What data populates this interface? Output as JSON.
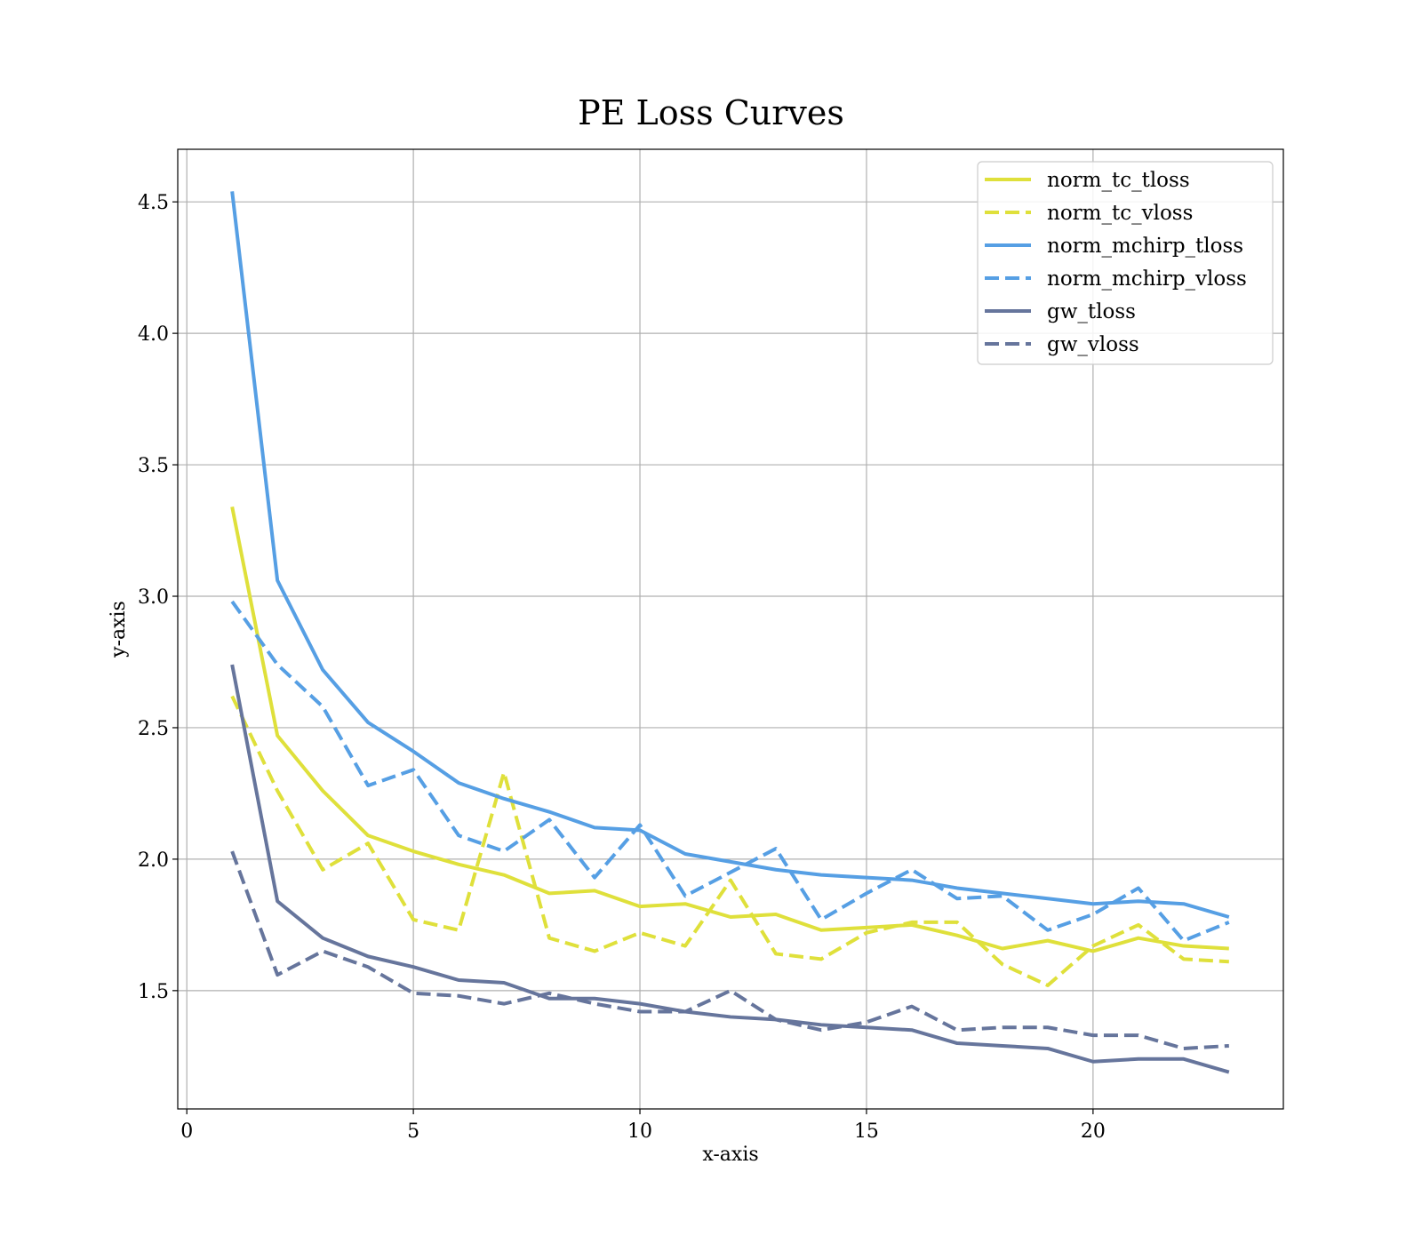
{
  "chart_data": {
    "type": "line",
    "title": "PE Loss Curves",
    "xlabel": "x-axis",
    "ylabel": "y-axis",
    "xlim": [
      -0.2,
      24.2
    ],
    "ylim": [
      1.05,
      4.7
    ],
    "xticks": [
      0,
      5,
      10,
      15,
      20
    ],
    "yticks": [
      1.5,
      2.0,
      2.5,
      3.0,
      3.5,
      4.0,
      4.5
    ],
    "xtick_labels": [
      "0",
      "5",
      "10",
      "15",
      "20"
    ],
    "ytick_labels": [
      "1.5",
      "2.0",
      "2.5",
      "3.0",
      "3.5",
      "4.0",
      "4.5"
    ],
    "grid": true,
    "legend_position": "top-right",
    "x": [
      1,
      2,
      3,
      4,
      5,
      6,
      7,
      8,
      9,
      10,
      11,
      12,
      13,
      14,
      15,
      16,
      17,
      18,
      19,
      20,
      21,
      22,
      23
    ],
    "series": [
      {
        "name": "norm_tc_tloss",
        "color": "#dfe03b",
        "dash": "solid",
        "values": [
          3.34,
          2.47,
          2.26,
          2.09,
          2.03,
          1.98,
          1.94,
          1.87,
          1.88,
          1.82,
          1.83,
          1.78,
          1.79,
          1.73,
          1.74,
          1.75,
          1.71,
          1.66,
          1.69,
          1.65,
          1.7,
          1.67,
          1.66
        ]
      },
      {
        "name": "norm_tc_vloss",
        "color": "#dfe03b",
        "dash": "dashed",
        "values": [
          2.62,
          2.26,
          1.96,
          2.06,
          1.77,
          1.73,
          2.33,
          1.7,
          1.65,
          1.72,
          1.67,
          1.92,
          1.64,
          1.62,
          1.72,
          1.76,
          1.76,
          1.6,
          1.52,
          1.67,
          1.75,
          1.62,
          1.61
        ]
      },
      {
        "name": "norm_mchirp_tloss",
        "color": "#569fe4",
        "dash": "solid",
        "values": [
          4.54,
          3.06,
          2.72,
          2.52,
          2.41,
          2.29,
          2.23,
          2.18,
          2.12,
          2.11,
          2.02,
          1.99,
          1.96,
          1.94,
          1.93,
          1.92,
          1.89,
          1.87,
          1.85,
          1.83,
          1.84,
          1.83,
          1.78
        ]
      },
      {
        "name": "norm_mchirp_vloss",
        "color": "#569fe4",
        "dash": "dashed",
        "values": [
          2.98,
          2.74,
          2.58,
          2.28,
          2.34,
          2.09,
          2.03,
          2.15,
          1.93,
          2.13,
          1.86,
          1.95,
          2.04,
          1.77,
          1.87,
          1.96,
          1.85,
          1.86,
          1.73,
          1.79,
          1.89,
          1.69,
          1.76
        ]
      },
      {
        "name": "gw_tloss",
        "color": "#66759c",
        "dash": "solid",
        "values": [
          2.74,
          1.84,
          1.7,
          1.63,
          1.59,
          1.54,
          1.53,
          1.47,
          1.47,
          1.45,
          1.42,
          1.4,
          1.39,
          1.37,
          1.36,
          1.35,
          1.3,
          1.29,
          1.28,
          1.23,
          1.24,
          1.24,
          1.19
        ]
      },
      {
        "name": "gw_vloss",
        "color": "#66759c",
        "dash": "dashed",
        "values": [
          2.03,
          1.56,
          1.65,
          1.59,
          1.49,
          1.48,
          1.45,
          1.49,
          1.45,
          1.42,
          1.42,
          1.5,
          1.39,
          1.35,
          1.38,
          1.44,
          1.35,
          1.36,
          1.36,
          1.33,
          1.33,
          1.28,
          1.29
        ]
      }
    ]
  }
}
